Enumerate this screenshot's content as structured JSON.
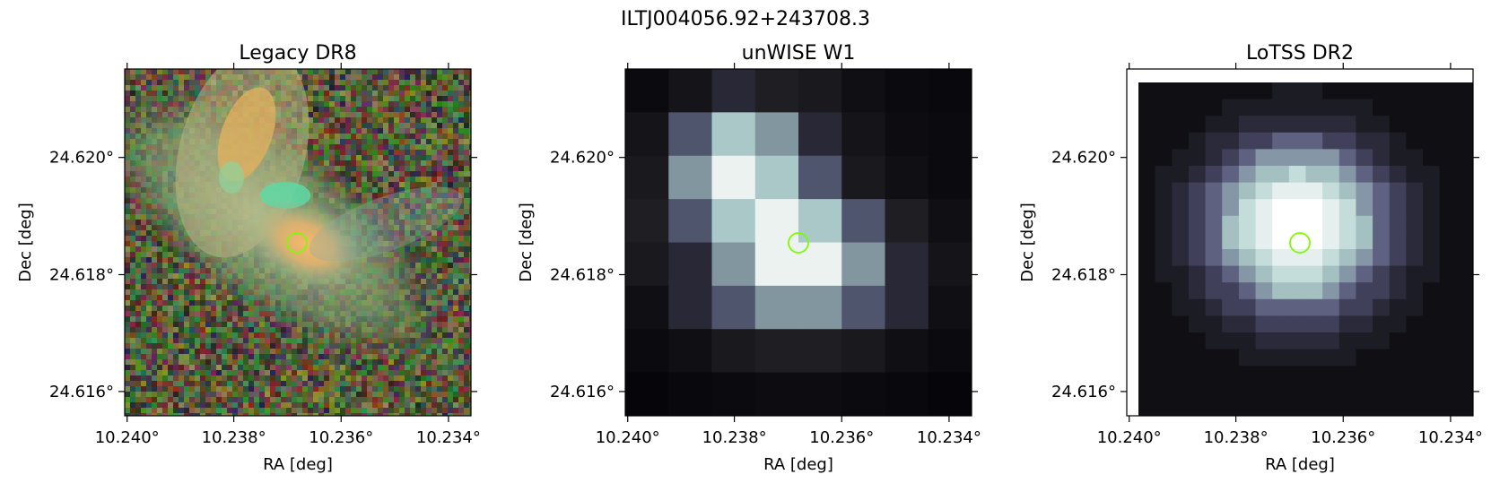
{
  "figure": {
    "suptitle": "ILTJ004056.92+243708.3",
    "marker_color": "#7CFC00"
  },
  "panels": [
    {
      "id": "legacy",
      "title": "Legacy DR8",
      "xlabel": "RA [deg]",
      "ylabel": "Dec [deg]",
      "x_ticks": [
        "10.240°",
        "10.238°",
        "10.236°",
        "10.234°"
      ],
      "y_ticks": [
        "24.620°",
        "24.618°",
        "24.616°"
      ],
      "image": "color optical cutout: elongated galaxy (yellow/orange core, green-tinted halo) on noisy RGB background"
    },
    {
      "id": "unwise",
      "title": "unWISE W1",
      "xlabel": "RA [deg]",
      "ylabel": "Dec [deg]",
      "x_ticks": [
        "10.240°",
        "10.238°",
        "10.236°",
        "10.234°"
      ],
      "y_ticks": [
        "24.620°",
        "24.618°",
        "24.616°"
      ],
      "image": "coarse-pixel grayscale infrared cutout, bright blob near center"
    },
    {
      "id": "lotss",
      "title": "LoTSS DR2",
      "xlabel": "RA [deg]",
      "ylabel": "Dec [deg]",
      "x_ticks": [
        "10.240°",
        "10.238°",
        "10.236°",
        "10.234°"
      ],
      "y_ticks": [
        "24.620°",
        "24.618°",
        "24.616°"
      ],
      "image": "grayscale radio cutout, smooth bright blob slightly left of center, blank border top-left"
    }
  ]
}
